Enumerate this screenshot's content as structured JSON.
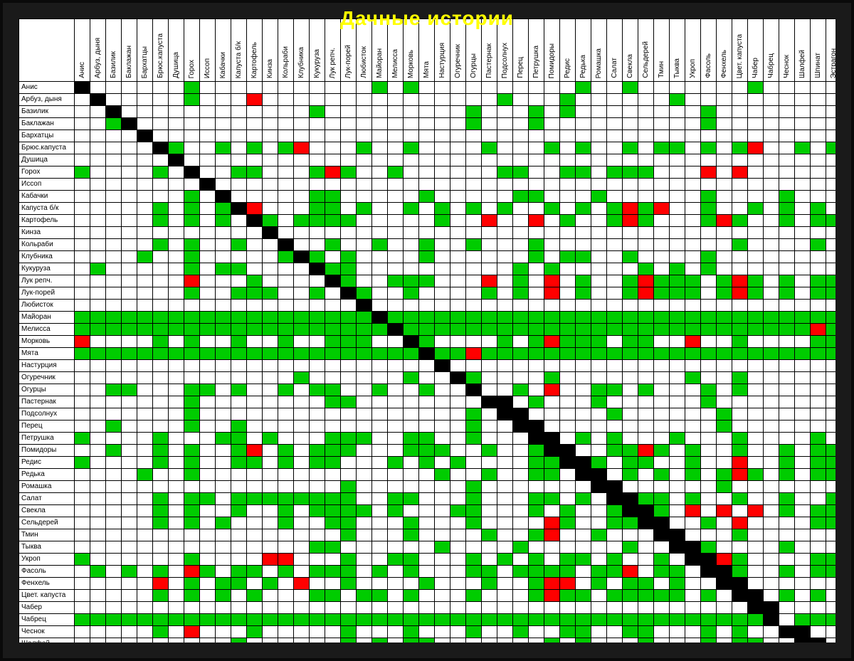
{
  "title": "Дачные истории",
  "colors": {
    "good": "#00cc00",
    "bad": "#ff0000",
    "self": "#000000",
    "blank": "#ffffff",
    "title": "#ffff00",
    "frame": "#1a1a1a",
    "border": "#000000"
  },
  "labels": [
    "Анис",
    "Арбуз, дыня",
    "Базилик",
    "Баклажан",
    "Бархатцы",
    "Брюс.капуста",
    "Душица",
    "Горох",
    "Иссоп",
    "Кабачки",
    "Капуста б/к",
    "Картофель",
    "Кинза",
    "Кольраби",
    "Клубника",
    "Кукуруза",
    "Лук репч.",
    "Лук-порей",
    "Любисток",
    "Майоран",
    "Мелисса",
    "Морковь",
    "Мята",
    "Настурция",
    "Огуречник",
    "Огурцы",
    "Пастернак",
    "Подсолнух",
    "Перец",
    "Петрушка",
    "Помидоры",
    "Редис",
    "Редька",
    "Ромашка",
    "Салат",
    "Свекла",
    "Сельдерей",
    "Тмин",
    "Тыква",
    "Укроп",
    "Фасоль",
    "Фенхель",
    "Цвет. капуста",
    "Чабер",
    "Чабрец",
    "Чеснок",
    "Шалфей",
    "Шпинат",
    "Эстрагон"
  ],
  "matrix": [
    "k      g           g g          g  g       g    ",
    " k     g   r               g   g      g          ",
    "  k            g         g   g g        g        ",
    "  gk                     g   g          g        ",
    "    k                                            ",
    "     kg  g g gr   g  g    g   g g  g gg g gr  g g",
    "      k                                          ",
    "g    g k  gg   grg  g      gg  gg ggg   r r      ",
    "        k                                        ",
    "       g k     gg     g     gg   g      g    g   ",
    "     g g gkr   gg g  g g g g  g g grgr  g  g g g ",
    "     g g g kg gggg     g  r  r g  grg   grg  g gg",
    "            k                                    ",
    "     g g  g  k  g  g  g  g   g            g    g ",
    "    g  g     gkg g    g      g gg  g    g        ",
    " g     g gg    kgg          g g     g g g        ",
    "       r   g    kg  ggg   r g r g  grggg grg g gg",
    "       g  ggg  g kg  g    g g r g  grggg grg g gg",
    "                  k                              ",
    "ggggggggggggggggggg ggggggggggggggggggggggggggggg",
    "gggggggggggggggggggg ggggggggggggggggggggggggggrg",
    "r    g g  g  g  ggg  kg    g grggg gg  r  g    gg",
    "ggggggggggggggggggggggkggrggggggggggggggggggggggg",
    "                       k                         ",
    "              g      g  kg    g        g  g      ",
    "  gg   gg g  g gg  g  g  k  g r  gg g   g g      ",
    "       g        gg         k g   g      g        ",
    "       g                 g  k     g      g       ",
    "  g    g  g              g   k           g       ",
    "g    g   gg g   ggg  gg  g    k g g   g   g    g ",
    "  g  g g  gr g ggg   ggg  g  g k  ggrg g  g  g gg",
    "g    g g  gg g gg   g g g    gg kg gg  g  r  g gg",
    "    g  g               g  g  gg  k g g g grg g gg",
    "                 g       g        k      g       ",
    "     g gg gggggggg  gg   g   gg g  kgg g  g  g  g",
    "     g g  g  g gggg g   gg   g g  g kg r r r g gg",
    "     g g g   g  gg   g   g    rg  gg k  g r    gg",
    "                 g   g    g  gr  g    k   g      ",
    "               gg      g    g      g   kg    g   ",
    "g      g    rr   g  gg   g g g gg g  g gkrg    gg",
    " g g g rg gg g ggg g g   gg gggg ggr gg rkg  g gg",
    "     r g gg g r  g    g   g  grr g gg g  gk      ",
    "     g g g g   gg gg g   g   grgg ggggg g gk g g ",
    "                                            k    ",
    "ggggggggggggggggggggggggggggggggggggggggggggg ggg",
    "     g r   g     g   g   g  g  gg  gg   g g   k  ",
    "          g      g g gg       g g   g   g gg   k ",
    "    g          gggg  g  gg    g g  ggg g  g  g  k",
    "ggggggggggggggggggggggggggggggggggggggggggggggggg"
  ]
}
